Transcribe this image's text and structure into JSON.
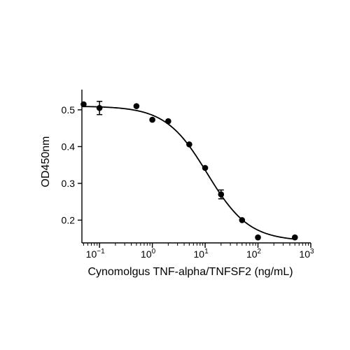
{
  "chart_data": {
    "type": "scatter",
    "xlabel": "Cynomolgus TNF-alpha/TNFSF2 (ng/mL)",
    "ylabel": "OD450nm",
    "xscale": "log",
    "xlim": [
      0.045,
      1000
    ],
    "ylim": [
      0.14,
      0.555
    ],
    "x_ticks": [
      {
        "value": 0.1,
        "base": "10",
        "exp": "−1"
      },
      {
        "value": 1,
        "base": "10",
        "exp": "0"
      },
      {
        "value": 10,
        "base": "10",
        "exp": "1"
      },
      {
        "value": 100,
        "base": "10",
        "exp": "2"
      },
      {
        "value": 1000,
        "base": "10",
        "exp": "3"
      }
    ],
    "y_ticks": [
      {
        "value": 0.2,
        "label": "0.2"
      },
      {
        "value": 0.3,
        "label": "0.3"
      },
      {
        "value": 0.4,
        "label": "0.4"
      },
      {
        "value": 0.5,
        "label": "0.5"
      }
    ],
    "points": [
      {
        "x": 0.05,
        "y": 0.515
      },
      {
        "x": 0.1,
        "y": 0.505,
        "err": 0.018
      },
      {
        "x": 0.5,
        "y": 0.51
      },
      {
        "x": 1,
        "y": 0.473
      },
      {
        "x": 2,
        "y": 0.469
      },
      {
        "x": 5,
        "y": 0.406
      },
      {
        "x": 10,
        "y": 0.342
      },
      {
        "x": 20,
        "y": 0.27,
        "err": 0.012
      },
      {
        "x": 50,
        "y": 0.2
      },
      {
        "x": 100,
        "y": 0.153
      },
      {
        "x": 500,
        "y": 0.153
      }
    ],
    "fit": {
      "model": "4PL",
      "top": 0.51,
      "bottom": 0.143,
      "ec50": 11,
      "hill": 1.1
    },
    "grid": false,
    "colors": {
      "marker": "#000000",
      "line": "#000000"
    }
  }
}
